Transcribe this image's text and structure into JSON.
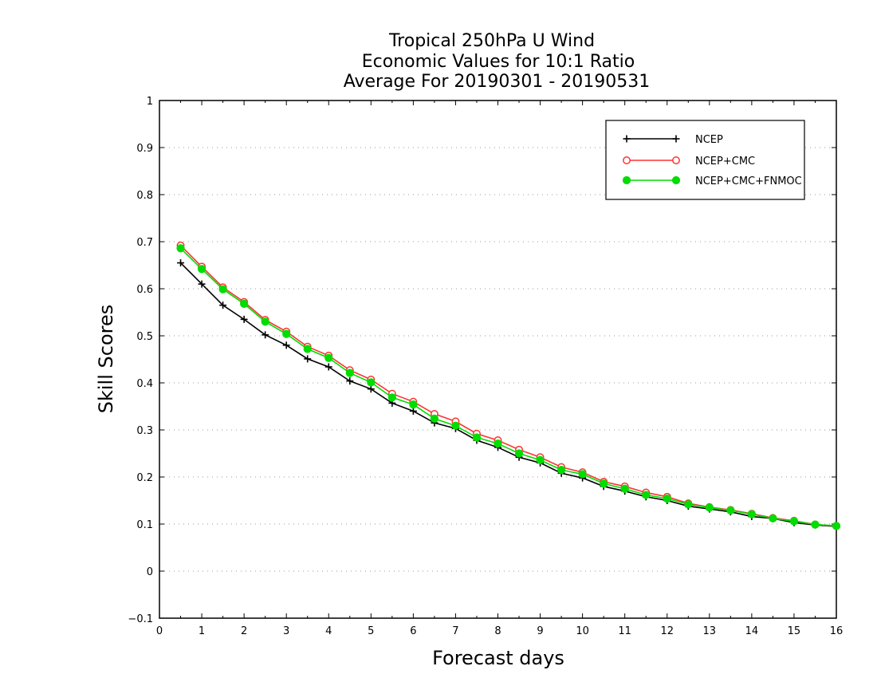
{
  "chart_data": {
    "type": "line",
    "title": [
      "Tropical 250hPa U Wind",
      "Economic Values for 10:1 Ratio",
      "Average For 20190301 - 20190531"
    ],
    "xlabel": "Forecast days",
    "ylabel": "Skill Scores",
    "xlim": [
      0,
      16
    ],
    "ylim": [
      -0.1,
      1
    ],
    "xticks": [
      0,
      1,
      2,
      3,
      4,
      5,
      6,
      7,
      8,
      9,
      10,
      11,
      12,
      13,
      14,
      15,
      16
    ],
    "xtick_labels": [
      "0",
      "1",
      "2",
      "3",
      "4",
      "5",
      "6",
      "7",
      "8",
      "9",
      "10",
      "11",
      "12",
      "13",
      "14",
      "15",
      "16"
    ],
    "yticks": [
      -0.1,
      0,
      0.1,
      0.2,
      0.3,
      0.4,
      0.5,
      0.6,
      0.7,
      0.8,
      0.9,
      1
    ],
    "ytick_labels": [
      "−0.1",
      "0",
      "0.1",
      "0.2",
      "0.3",
      "0.4",
      "0.5",
      "0.6",
      "0.7",
      "0.8",
      "0.9",
      "1"
    ],
    "grid": "horizontal dotted",
    "legend_position": "top-right",
    "x": [
      0.5,
      1,
      1.5,
      2,
      2.5,
      3,
      3.5,
      4,
      4.5,
      5,
      5.5,
      6,
      6.5,
      7,
      7.5,
      8,
      8.5,
      9,
      9.5,
      10,
      10.5,
      11,
      11.5,
      12,
      12.5,
      13,
      13.5,
      14,
      14.5,
      15,
      15.5,
      16
    ],
    "series": [
      {
        "name": "NCEP",
        "color": "#000000",
        "marker": "plus",
        "values": [
          0.655,
          0.61,
          0.565,
          0.535,
          0.502,
          0.48,
          0.451,
          0.434,
          0.404,
          0.387,
          0.357,
          0.34,
          0.315,
          0.303,
          0.278,
          0.263,
          0.242,
          0.23,
          0.208,
          0.198,
          0.18,
          0.17,
          0.158,
          0.15,
          0.138,
          0.132,
          0.126,
          0.116,
          0.112,
          0.103,
          0.098,
          0.095
        ]
      },
      {
        "name": "NCEP+CMC",
        "color": "#ff3333",
        "marker": "open-circle",
        "values": [
          0.692,
          0.647,
          0.603,
          0.572,
          0.534,
          0.509,
          0.477,
          0.458,
          0.427,
          0.407,
          0.377,
          0.36,
          0.334,
          0.318,
          0.292,
          0.278,
          0.258,
          0.242,
          0.221,
          0.21,
          0.19,
          0.18,
          0.167,
          0.158,
          0.144,
          0.136,
          0.13,
          0.122,
          0.113,
          0.107,
          0.099,
          0.096
        ]
      },
      {
        "name": "NCEP+CMC+FNMOC",
        "color": "#00dd00",
        "marker": "filled-circle",
        "values": [
          0.686,
          0.642,
          0.599,
          0.568,
          0.53,
          0.504,
          0.472,
          0.453,
          0.421,
          0.401,
          0.369,
          0.354,
          0.324,
          0.309,
          0.284,
          0.271,
          0.25,
          0.236,
          0.215,
          0.206,
          0.186,
          0.175,
          0.162,
          0.154,
          0.142,
          0.135,
          0.129,
          0.121,
          0.112,
          0.106,
          0.099,
          0.096
        ]
      }
    ]
  }
}
